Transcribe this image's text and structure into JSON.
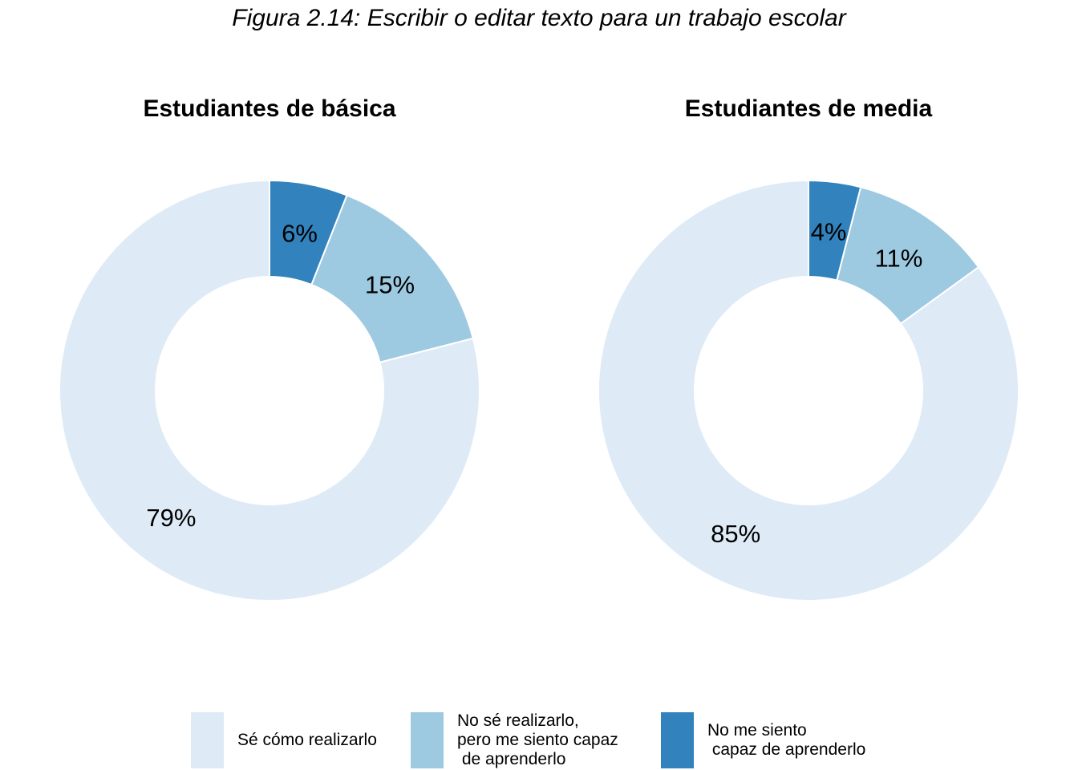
{
  "figure_title": "Figura 2.14: Escribir o editar texto para un trabajo escolar",
  "colors": {
    "se_como": "#deebf7",
    "no_se_capaz": "#9ecae1",
    "no_me_siento_capaz": "#3182bd"
  },
  "chart_data": [
    {
      "type": "pie",
      "subtype": "donut",
      "title": "Estudiantes de básica",
      "categories": [
        "Sé cómo realizarlo",
        "No sé realizarlo, pero me siento capaz de aprenderlo",
        "No me siento capaz de aprenderlo"
      ],
      "values": [
        79,
        15,
        6
      ],
      "value_labels": [
        "79%",
        "15%",
        "6%"
      ]
    },
    {
      "type": "pie",
      "subtype": "donut",
      "title": "Estudiantes de media",
      "categories": [
        "Sé cómo realizarlo",
        "No sé realizarlo, pero me siento capaz de aprenderlo",
        "No me siento capaz de aprenderlo"
      ],
      "values": [
        85,
        11,
        4
      ],
      "value_labels": [
        "85%",
        "11%",
        "4%"
      ]
    }
  ],
  "legend": {
    "placement": "bottom",
    "items": [
      {
        "label": "Sé cómo realizarlo",
        "color": "#deebf7"
      },
      {
        "label": "No sé realizarlo,\npero me siento capaz\n de aprenderlo",
        "color": "#9ecae1"
      },
      {
        "label": "No me siento\n capaz de aprenderlo",
        "color": "#3182bd"
      }
    ]
  }
}
